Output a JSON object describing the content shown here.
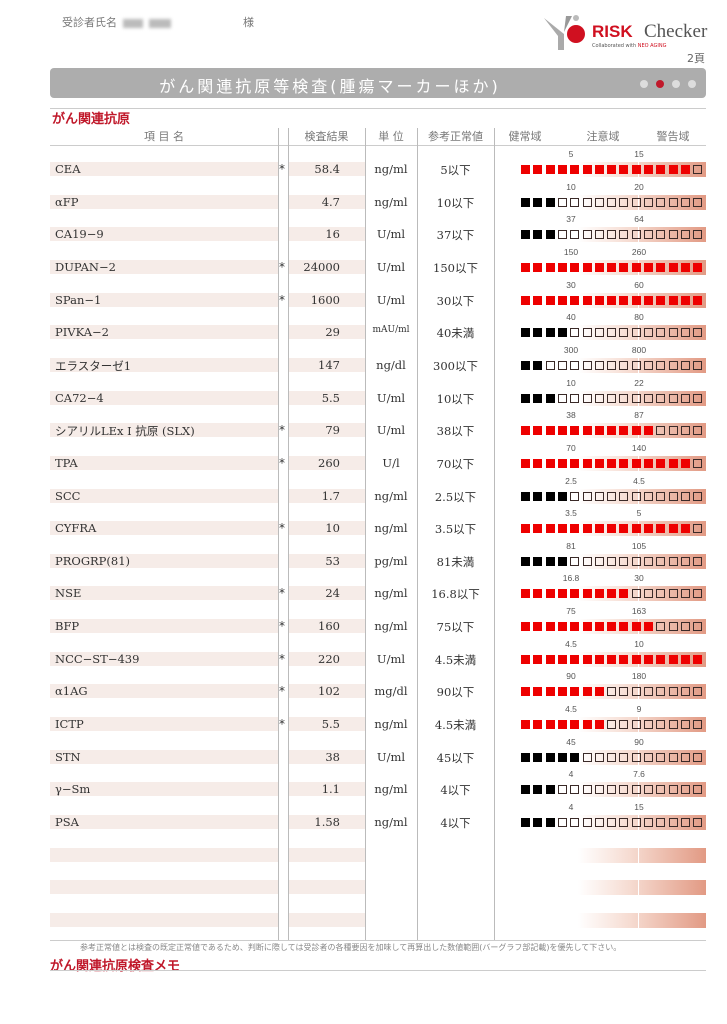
{
  "header": {
    "patient_label": "受診者氏名",
    "honorific": "様",
    "logo": {
      "brand_bold": "RISK",
      "brand": "Checker",
      "sub": "Collaborated with",
      "sub_brand": "NEO AGING"
    },
    "page_number": "2頁"
  },
  "banner": {
    "title": "がん関連抗原等検査(腫瘍マーカーほか)",
    "page_dots": 4,
    "active_dot": 2
  },
  "section_title": "がん関連抗原",
  "columns": {
    "item": "項 目 名",
    "result": "検査結果",
    "unit": "単 位",
    "reference": "参考正常値",
    "healthy": "健常域",
    "caution": "注意域",
    "warning": "警告域"
  },
  "colors": {
    "accent": "#c0182a",
    "flag_fill": "#ee0000",
    "normal_fill": "#000000"
  },
  "bar_squares": 15,
  "rows": [
    {
      "name": "CEA",
      "flag": "*",
      "result": "58.4",
      "unit": "ng/ml",
      "ref": "5以下",
      "low": "5",
      "high": "15",
      "level": 14
    },
    {
      "name": "αFP",
      "flag": "",
      "result": "4.7",
      "unit": "ng/ml",
      "ref": "10以下",
      "low": "10",
      "high": "20",
      "level": 3
    },
    {
      "name": "CA19−9",
      "flag": "",
      "result": "16",
      "unit": "U/ml",
      "ref": "37以下",
      "low": "37",
      "high": "64",
      "level": 3
    },
    {
      "name": "DUPAN−2",
      "flag": "*",
      "result": "24000",
      "unit": "U/ml",
      "ref": "150以下",
      "low": "150",
      "high": "260",
      "level": 15
    },
    {
      "name": "SPan−1",
      "flag": "*",
      "result": "1600",
      "unit": "U/ml",
      "ref": "30以下",
      "low": "30",
      "high": "60",
      "level": 15
    },
    {
      "name": "PIVKA−2",
      "flag": "",
      "result": "29",
      "unit": "mAU/ml",
      "ref": "40未満",
      "low": "40",
      "high": "80",
      "level": 4
    },
    {
      "name": "エラスターゼ1",
      "flag": "",
      "result": "147",
      "unit": "ng/dl",
      "ref": "300以下",
      "low": "300",
      "high": "800",
      "level": 2
    },
    {
      "name": "CA72−4",
      "flag": "",
      "result": "5.5",
      "unit": "U/ml",
      "ref": "10以下",
      "low": "10",
      "high": "22",
      "level": 3
    },
    {
      "name": "シアリルLEx I 抗原 (SLX)",
      "flag": "*",
      "result": "79",
      "unit": "U/ml",
      "ref": "38以下",
      "low": "38",
      "high": "87",
      "level": 11
    },
    {
      "name": "TPA",
      "flag": "*",
      "result": "260",
      "unit": "U/l",
      "ref": "70以下",
      "low": "70",
      "high": "140",
      "level": 14
    },
    {
      "name": "SCC",
      "flag": "",
      "result": "1.7",
      "unit": "ng/ml",
      "ref": "2.5以下",
      "low": "2.5",
      "high": "4.5",
      "level": 4
    },
    {
      "name": "CYFRA",
      "flag": "*",
      "result": "10",
      "unit": "ng/ml",
      "ref": "3.5以下",
      "low": "3.5",
      "high": "5",
      "level": 14
    },
    {
      "name": "PROGRP(81)",
      "flag": "",
      "result": "53",
      "unit": "pg/ml",
      "ref": "81未満",
      "low": "81",
      "high": "105",
      "level": 4
    },
    {
      "name": "NSE",
      "flag": "*",
      "result": "24",
      "unit": "ng/ml",
      "ref": "16.8以下",
      "low": "16.8",
      "high": "30",
      "level": 9
    },
    {
      "name": "BFP",
      "flag": "*",
      "result": "160",
      "unit": "ng/ml",
      "ref": "75以下",
      "low": "75",
      "high": "163",
      "level": 11
    },
    {
      "name": "NCC−ST−439",
      "flag": "*",
      "result": "220",
      "unit": "U/ml",
      "ref": "4.5未満",
      "low": "4.5",
      "high": "10",
      "level": 15
    },
    {
      "name": "α1AG",
      "flag": "*",
      "result": "102",
      "unit": "mg/dl",
      "ref": "90以下",
      "low": "90",
      "high": "180",
      "level": 7
    },
    {
      "name": "ICTP",
      "flag": "*",
      "result": "5.5",
      "unit": "ng/ml",
      "ref": "4.5未満",
      "low": "4.5",
      "high": "9",
      "level": 7
    },
    {
      "name": "STN",
      "flag": "",
      "result": "38",
      "unit": "U/ml",
      "ref": "45以下",
      "low": "45",
      "high": "90",
      "level": 5
    },
    {
      "name": "γ−Sm",
      "flag": "",
      "result": "1.1",
      "unit": "ng/ml",
      "ref": "4以下",
      "low": "4",
      "high": "7.6",
      "level": 3
    },
    {
      "name": "PSA",
      "flag": "",
      "result": "1.58",
      "unit": "ng/ml",
      "ref": "4以下",
      "low": "4",
      "high": "15",
      "level": 3
    }
  ],
  "empty_rows": 3,
  "footnote": "参考正常値とは検査の既定正常値であるため、判断に際しては受診者の各種要因を加味して再算出した数値範囲(バーグラフ部記載)を優先して下さい。",
  "memo_title": "がん関連抗原検査メモ"
}
